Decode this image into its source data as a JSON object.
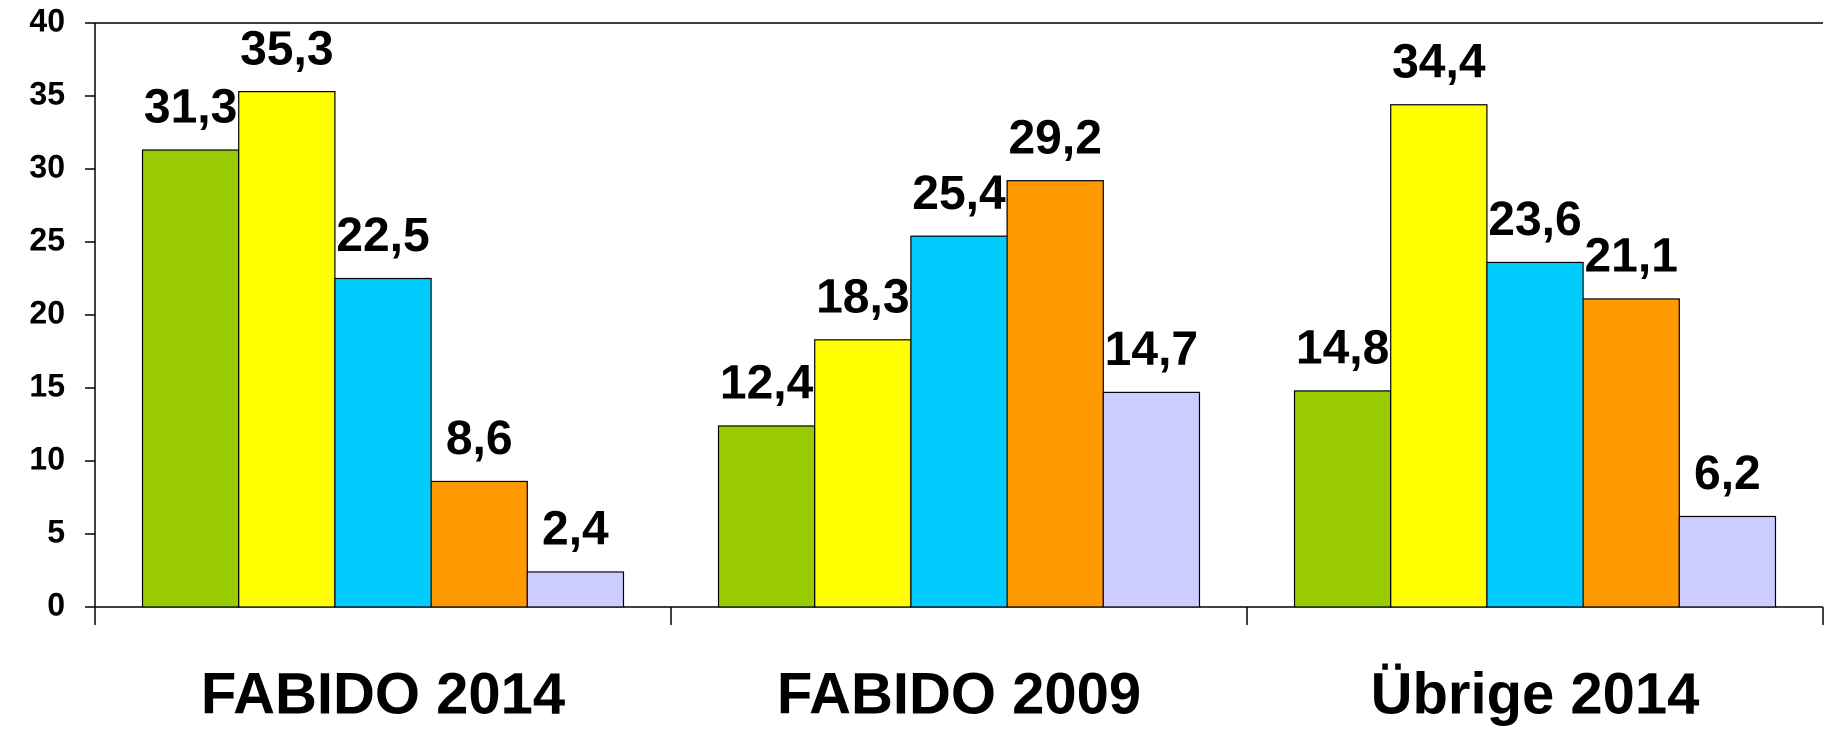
{
  "chart_data": {
    "type": "bar",
    "categories": [
      "FABIDO 2014",
      "FABIDO 2009",
      "Übrige 2014"
    ],
    "series": [
      {
        "color": "#99cc00",
        "values": [
          31.3,
          12.4,
          14.8
        ],
        "value_labels": [
          "31,3",
          "12,4",
          "14,8"
        ]
      },
      {
        "color": "#ffff00",
        "values": [
          35.3,
          18.3,
          34.4
        ],
        "value_labels": [
          "35,3",
          "18,3",
          "34,4"
        ]
      },
      {
        "color": "#00ccff",
        "values": [
          22.5,
          25.4,
          23.6
        ],
        "value_labels": [
          "22,5",
          "25,4",
          "23,6"
        ]
      },
      {
        "color": "#ff9900",
        "values": [
          8.6,
          29.2,
          21.1
        ],
        "value_labels": [
          "8,6",
          "29,2",
          "21,1"
        ]
      },
      {
        "color": "#ccccff",
        "values": [
          2.4,
          14.7,
          6.2
        ],
        "value_labels": [
          "2,4",
          "14,7",
          "6,2"
        ]
      }
    ],
    "ylim": [
      0,
      40
    ],
    "yticks": [
      0,
      5,
      10,
      15,
      20,
      25,
      30,
      35,
      40
    ],
    "grid": false
  }
}
